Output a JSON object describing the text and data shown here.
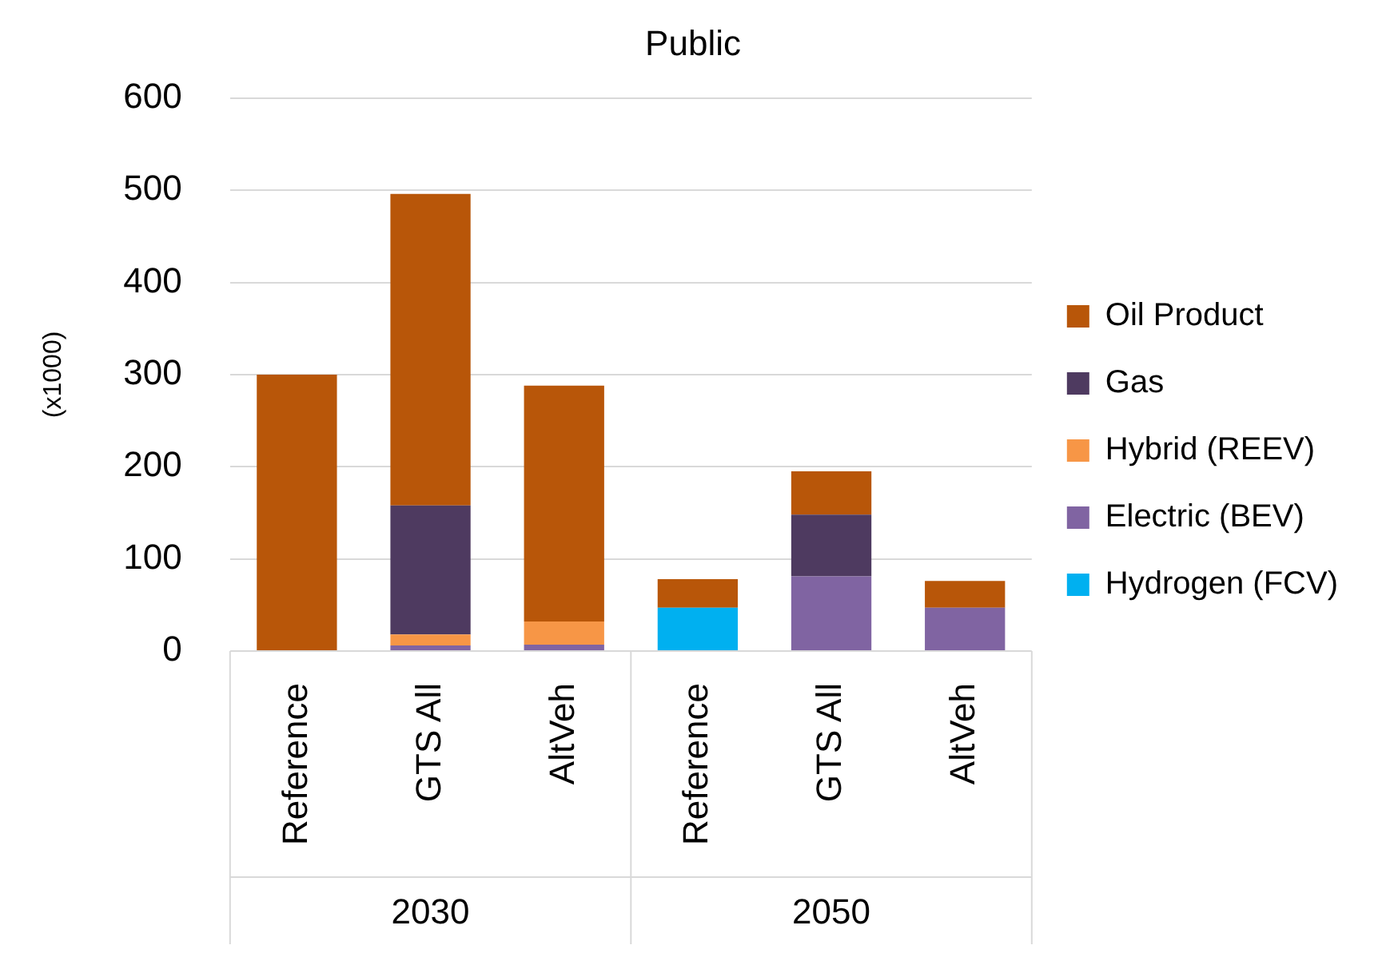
{
  "chart_data": {
    "type": "bar",
    "title": "Public",
    "ylabel": "(x1000)",
    "categories": [
      "Reference",
      "GTS All",
      "AltVeh",
      "Reference",
      "GTS All",
      "AltVeh"
    ],
    "annotations": [
      "2030",
      "2050"
    ],
    "stacked": true,
    "ylim": [
      0,
      600
    ],
    "yticks": [
      0,
      100,
      200,
      300,
      400,
      500,
      600
    ],
    "grid": "y",
    "legend": "right",
    "series": [
      {
        "name": "Hydrogen (FCV)",
        "color": "#00b0f0",
        "values": [
          0,
          0,
          0,
          47,
          0,
          0
        ]
      },
      {
        "name": "Electric (BEV)",
        "color": "#8064a2",
        "values": [
          0,
          6,
          7,
          0,
          81,
          47
        ]
      },
      {
        "name": "Hybrid (REEV)",
        "color": "#f79646",
        "values": [
          0,
          12,
          25,
          0,
          0,
          0
        ]
      },
      {
        "name": "Gas",
        "color": "#4e3a60",
        "values": [
          0,
          140,
          0,
          0,
          67,
          0
        ]
      },
      {
        "name": "Oil Product",
        "color": "#b85609",
        "values": [
          300,
          338,
          256,
          31,
          47,
          29
        ]
      }
    ]
  }
}
